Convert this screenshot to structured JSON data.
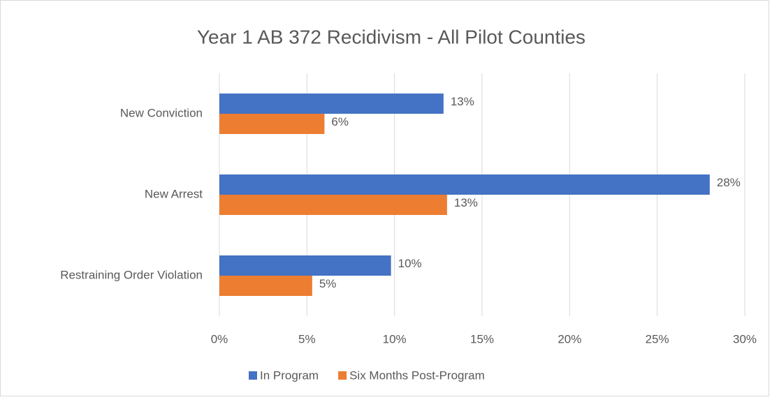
{
  "chart_data": {
    "type": "barh",
    "title": "Year 1 AB 372 Recidivism - All Pilot Counties",
    "categories": [
      "New Conviction",
      "New Arrest",
      "Restraining Order Violation"
    ],
    "series": [
      {
        "name": "In Program",
        "color": "#4472c4",
        "values": [
          12.8,
          28,
          9.8
        ],
        "value_labels": [
          "13%",
          "28%",
          "10%"
        ]
      },
      {
        "name": "Six Months Post-Program",
        "color": "#ed7d31",
        "values": [
          6,
          13,
          5.3
        ],
        "value_labels": [
          "6%",
          "13%",
          "5%"
        ]
      }
    ],
    "xlim": [
      0,
      30
    ],
    "xticks": [
      {
        "value": 0,
        "label": "0%"
      },
      {
        "value": 5,
        "label": "5%"
      },
      {
        "value": 10,
        "label": "10%"
      },
      {
        "value": 15,
        "label": "15%"
      },
      {
        "value": 20,
        "label": "20%"
      },
      {
        "value": 25,
        "label": "25%"
      },
      {
        "value": 30,
        "label": "30%"
      }
    ],
    "grid": true,
    "legend": "bottom"
  }
}
